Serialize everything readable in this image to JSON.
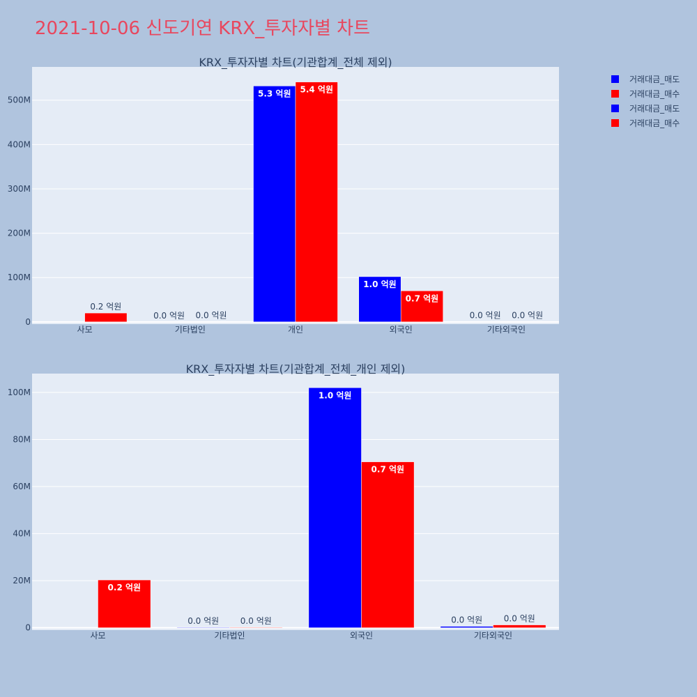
{
  "title": "2021-10-06 신도기연 KRX_투자자별 차트",
  "legend": {
    "items": [
      {
        "label": "거래대금_매도",
        "color": "#0000ff"
      },
      {
        "label": "거래대금_매수",
        "color": "#ff0000"
      },
      {
        "label": "거래대금_매도",
        "color": "#0000ff"
      },
      {
        "label": "거래대금_매수",
        "color": "#ff0000"
      }
    ]
  },
  "colors": {
    "sell": "#0000ff",
    "buy": "#ff0000",
    "plot_bg": "#e5ecf6",
    "page_bg": "#b0c4de",
    "title": "#e8475e"
  },
  "chart_data": [
    {
      "type": "bar",
      "title": "KRX_투자자별 차트(기관합계_전체 제외)",
      "categories": [
        "사모",
        "기타법인",
        "개인",
        "외국인",
        "기타외국인"
      ],
      "ylim": [
        -5000000,
        575000000
      ],
      "yticks": [
        0,
        100000000,
        200000000,
        300000000,
        400000000,
        500000000
      ],
      "ytick_labels": [
        "0",
        "100M",
        "200M",
        "300M",
        "400M",
        "500M"
      ],
      "grid": true,
      "series": [
        {
          "name": "거래대금_매도",
          "values": [
            0,
            0,
            532000000,
            102000000,
            200000
          ],
          "labels": [
            "",
            "0.0 억원",
            "5.3 억원",
            "1.0 억원",
            "0.0 억원"
          ]
        },
        {
          "name": "거래대금_매수",
          "values": [
            20000000,
            200000,
            541000000,
            70000000,
            500000
          ],
          "labels": [
            "0.2 억원",
            "0.0 억원",
            "5.4 억원",
            "0.7 억원",
            "0.0 억원"
          ]
        }
      ]
    },
    {
      "type": "bar",
      "title": "KRX_투자자별 차트(기관합계_전체_개인 제외)",
      "categories": [
        "사모",
        "기타법인",
        "외국인",
        "기타외국인"
      ],
      "ylim": [
        -1000000,
        108000000
      ],
      "yticks": [
        0,
        20000000,
        40000000,
        60000000,
        80000000,
        100000000
      ],
      "ytick_labels": [
        "0",
        "20M",
        "40M",
        "60M",
        "80M",
        "100M"
      ],
      "grid": true,
      "series": [
        {
          "name": "거래대금_매도",
          "values": [
            0,
            200000,
            102000000,
            600000
          ],
          "labels": [
            "",
            "0.0 억원",
            "1.0 억원",
            "0.0 억원"
          ]
        },
        {
          "name": "거래대금_매수",
          "values": [
            20300000,
            200000,
            70500000,
            1200000
          ],
          "labels": [
            "0.2 억원",
            "0.0 억원",
            "0.7 억원",
            "0.0 억원"
          ]
        }
      ]
    }
  ]
}
